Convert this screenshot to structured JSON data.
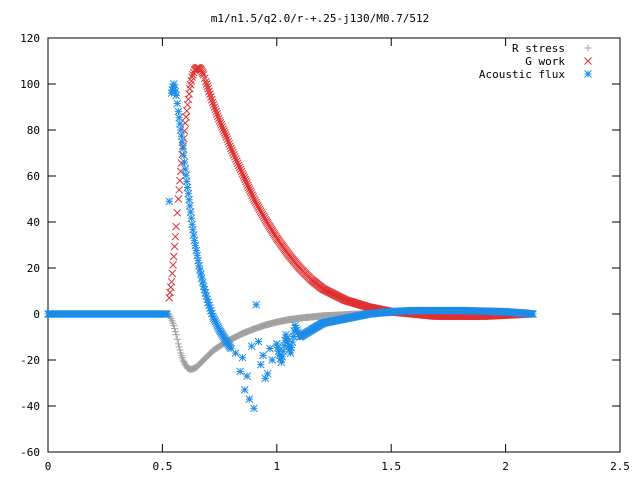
{
  "chart_data": {
    "type": "scatter",
    "title": "m1/n1.5/q2.0/r-+.25-j130/M0.7/512",
    "xlabel": "",
    "ylabel": "",
    "xlim": [
      0,
      2.5
    ],
    "ylim": [
      -60,
      120
    ],
    "x_ticks": [
      0,
      0.5,
      1,
      1.5,
      2,
      2.5
    ],
    "x_tick_labels": [
      "0",
      "0.5",
      "1",
      "1.5",
      "2",
      "2.5"
    ],
    "y_ticks": [
      -60,
      -40,
      -20,
      0,
      20,
      40,
      60,
      80,
      100,
      120
    ],
    "y_tick_labels": [
      "-60",
      "-40",
      "-20",
      "0",
      "20",
      "40",
      "60",
      "80",
      "100",
      "120"
    ],
    "grid": false,
    "legend": "top-right",
    "series": [
      {
        "name": "R stress",
        "marker": "plus",
        "color": "#a0a0a0",
        "x": [
          0,
          0.1,
          0.2,
          0.3,
          0.4,
          0.5,
          0.53,
          0.55,
          0.56,
          0.57,
          0.58,
          0.59,
          0.6,
          0.61,
          0.62,
          0.63,
          0.64,
          0.65,
          0.66,
          0.68,
          0.7,
          0.72,
          0.75,
          0.78,
          0.8,
          0.85,
          0.9,
          0.95,
          1.0,
          1.05,
          1.1,
          1.2,
          1.3,
          1.4,
          1.5,
          1.6,
          1.7,
          1.8,
          1.9,
          2.0,
          2.1
        ],
        "y": [
          0,
          0,
          0,
          0,
          0,
          0,
          0,
          -5,
          -9,
          -13,
          -17,
          -20,
          -22,
          -23.5,
          -24,
          -24,
          -23.5,
          -23,
          -22,
          -20,
          -18,
          -16,
          -14,
          -12,
          -11,
          -8.5,
          -6.5,
          -4.8,
          -3.5,
          -2.5,
          -1.8,
          -0.8,
          -0.3,
          0.2,
          0.6,
          1,
          1.2,
          1.2,
          1,
          0.8,
          0.5
        ]
      },
      {
        "name": "G work",
        "marker": "x",
        "color": "#e03030",
        "x": [
          0.53,
          0.54,
          0.55,
          0.56,
          0.57,
          0.58,
          0.59,
          0.6,
          0.61,
          0.62,
          0.63,
          0.64,
          0.65,
          0.66,
          0.67,
          0.68,
          0.69,
          0.7,
          0.72,
          0.75,
          0.78,
          0.8,
          0.85,
          0.9,
          0.95,
          1.0,
          1.05,
          1.1,
          1.15,
          1.2,
          1.3,
          1.4,
          1.5,
          1.6,
          1.7,
          1.8,
          1.9,
          2.0,
          2.1
        ],
        "y": [
          7,
          14,
          25,
          38,
          50,
          62,
          73,
          83,
          91,
          98,
          103,
          106,
          107,
          107,
          106,
          104,
          101,
          98,
          92,
          84,
          77,
          72,
          61,
          50,
          41,
          33,
          26,
          20,
          15,
          11,
          6,
          3,
          1,
          0,
          -1,
          -1,
          -1,
          -0.5,
          0
        ]
      },
      {
        "name": "Acoustic flux",
        "marker": "star",
        "color": "#1c8ce8",
        "x": [
          0,
          0.1,
          0.2,
          0.3,
          0.4,
          0.5,
          0.52,
          0.53,
          0.54,
          0.55,
          0.56,
          0.57,
          0.58,
          0.59,
          0.6,
          0.61,
          0.62,
          0.63,
          0.64,
          0.66,
          0.68,
          0.7,
          0.72,
          0.75,
          0.78,
          0.8,
          0.82,
          0.84,
          0.85,
          0.86,
          0.87,
          0.88,
          0.89,
          0.9,
          0.91,
          0.92,
          0.93,
          0.94,
          0.95,
          0.96,
          0.97,
          0.98,
          1.0,
          1.02,
          1.04,
          1.06,
          1.08,
          1.1,
          1.15,
          1.2,
          1.3,
          1.4,
          1.5,
          1.6,
          1.8,
          2.0,
          2.12
        ],
        "y": [
          0,
          0,
          0,
          0,
          0,
          0,
          0,
          49,
          96,
          100,
          95,
          88,
          80,
          72,
          63,
          55,
          47,
          39,
          32,
          21,
          12,
          5,
          -1,
          -7,
          -12,
          -15,
          -17,
          -25,
          -19,
          -33,
          -27,
          -37,
          -14,
          -41,
          4,
          -12,
          -22,
          -18,
          -28,
          -26,
          -15,
          -20,
          -13,
          -21,
          -9,
          -17,
          -5,
          -10,
          -7,
          -4,
          -2,
          0,
          1,
          1.5,
          1.5,
          1,
          0
        ]
      }
    ]
  }
}
